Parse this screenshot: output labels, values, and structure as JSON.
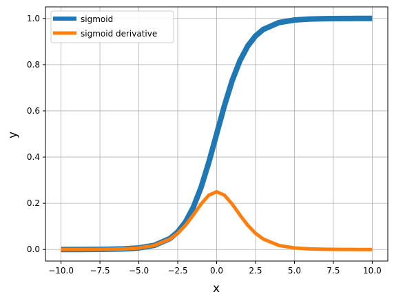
{
  "chart_data": {
    "type": "line",
    "title": "",
    "xlabel": "x",
    "ylabel": "y",
    "xlim": [
      -11,
      11
    ],
    "ylim": [
      -0.05,
      1.05
    ],
    "grid": true,
    "legend_position": "top-left",
    "x_ticks": [
      "−10.0",
      "−7.5",
      "−5.0",
      "−2.5",
      "0.0",
      "2.5",
      "5.0",
      "7.5",
      "10.0"
    ],
    "x_tick_values": [
      -10,
      -7.5,
      -5,
      -2.5,
      0,
      2.5,
      5,
      7.5,
      10
    ],
    "y_ticks": [
      "0.0",
      "0.2",
      "0.4",
      "0.6",
      "0.8",
      "1.0"
    ],
    "y_tick_values": [
      0,
      0.2,
      0.4,
      0.6,
      0.8,
      1.0
    ],
    "series": [
      {
        "name": "sigmoid",
        "color": "#1f77b4",
        "x": [
          -10,
          -9,
          -8,
          -7,
          -6,
          -5,
          -4,
          -3,
          -2.5,
          -2,
          -1.5,
          -1,
          -0.5,
          0,
          0.5,
          1,
          1.5,
          2,
          2.5,
          3,
          4,
          5,
          6,
          7,
          8,
          9,
          10
        ],
        "values": [
          0.0,
          0.0001,
          0.0003,
          0.0009,
          0.0025,
          0.0067,
          0.018,
          0.0474,
          0.0759,
          0.1192,
          0.1824,
          0.2689,
          0.3775,
          0.5,
          0.6225,
          0.7311,
          0.8176,
          0.8808,
          0.9241,
          0.9526,
          0.982,
          0.9933,
          0.9975,
          0.9991,
          0.9997,
          0.9999,
          1.0
        ]
      },
      {
        "name": "sigmoid derivative",
        "color": "#ff7f0e",
        "x": [
          -10,
          -9,
          -8,
          -7,
          -6,
          -5,
          -4,
          -3,
          -2.5,
          -2,
          -1.5,
          -1,
          -0.5,
          0,
          0.5,
          1,
          1.5,
          2,
          2.5,
          3,
          4,
          5,
          6,
          7,
          8,
          9,
          10
        ],
        "values": [
          0.0,
          0.0001,
          0.0003,
          0.0009,
          0.0025,
          0.0066,
          0.0177,
          0.0452,
          0.0701,
          0.105,
          0.1491,
          0.1966,
          0.235,
          0.25,
          0.235,
          0.1966,
          0.1491,
          0.105,
          0.0701,
          0.0452,
          0.0177,
          0.0066,
          0.0025,
          0.0009,
          0.0003,
          0.0001,
          0.0
        ]
      }
    ]
  }
}
